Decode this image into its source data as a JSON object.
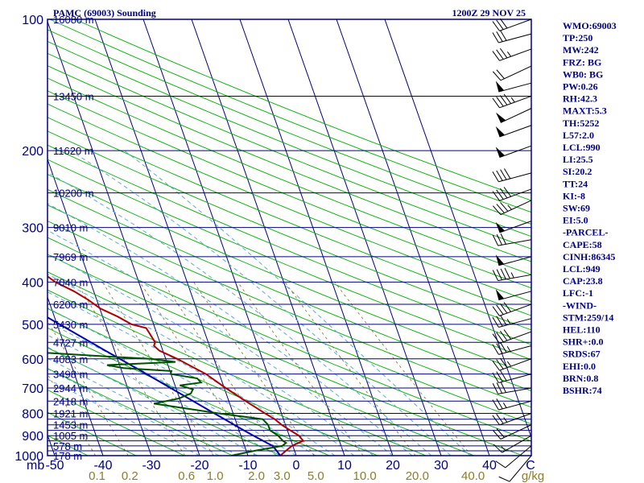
{
  "header": {
    "station": "PAMC (69003) Sounding",
    "time": "1200Z 29 NOV 25"
  },
  "indices": [
    "WMO:69003",
    "TP:250",
    "MW:242",
    "FRZ: BG",
    "WB0: BG",
    "PW:0.26",
    "RH:42.3",
    "MAXT:5.3",
    "TH:5252",
    "L57:2.0",
    "LCL:990",
    "LI:25.5",
    "SI:20.2",
    "TT:24",
    "KI:-8",
    "SW:69",
    "EI:5.0",
    "-PARCEL-",
    "CAPE:58",
    "CINH:86345",
    "LCL:949",
    "CAP:23.8",
    "LFC:-1",
    "-WIND-",
    "STM:259/14",
    "HEL:110",
    "SHR+:0.0",
    "SRDS:67",
    "EHI:0.0",
    "BRN:0.8",
    "BSHR:74"
  ],
  "chart_data": {
    "type": "skew-t",
    "pressure_levels": [
      {
        "p": 100,
        "label": "100"
      },
      {
        "p": 200,
        "label": "200"
      },
      {
        "p": 300,
        "label": "300"
      },
      {
        "p": 400,
        "label": "400"
      },
      {
        "p": 500,
        "label": "500"
      },
      {
        "p": 600,
        "label": "600"
      },
      {
        "p": 700,
        "label": "700"
      },
      {
        "p": 800,
        "label": "800"
      },
      {
        "p": 900,
        "label": "900"
      },
      {
        "p": 1000,
        "label": "1000"
      }
    ],
    "heights": [
      {
        "p": 100,
        "label": "16080 m"
      },
      {
        "p": 150,
        "label": "13450 m"
      },
      {
        "p": 200,
        "label": "11620 m"
      },
      {
        "p": 250,
        "label": "10200 m"
      },
      {
        "p": 300,
        "label": "9010 m"
      },
      {
        "p": 350,
        "label": "7969 m"
      },
      {
        "p": 400,
        "label": "7040 m"
      },
      {
        "p": 450,
        "label": "6200 m"
      },
      {
        "p": 500,
        "label": "5430 m"
      },
      {
        "p": 550,
        "label": "4727 m"
      },
      {
        "p": 600,
        "label": "4083 m"
      },
      {
        "p": 650,
        "label": "3498 m"
      },
      {
        "p": 700,
        "label": "2944 m"
      },
      {
        "p": 750,
        "label": "2418 m"
      },
      {
        "p": 800,
        "label": "1921 m"
      },
      {
        "p": 850,
        "label": "1453 m"
      },
      {
        "p": 900,
        "label": "1005 m"
      },
      {
        "p": 950,
        "label": "578 m"
      },
      {
        "p": 1000,
        "label": "178 m"
      }
    ],
    "extra_isobars": [
      825,
      875,
      925,
      975
    ],
    "unit_label": "mb",
    "mixing_unit": "g/kg",
    "temp_ticks": [
      {
        "t": -50,
        "label": "-50"
      },
      {
        "t": -40,
        "label": "-40"
      },
      {
        "t": -30,
        "label": "-30"
      },
      {
        "t": -20,
        "label": "-20"
      },
      {
        "t": -10,
        "label": "-10"
      },
      {
        "t": 0,
        "label": "0"
      },
      {
        "t": 10,
        "label": "10"
      },
      {
        "t": 20,
        "label": "20"
      },
      {
        "t": 30,
        "label": "30"
      },
      {
        "t": 40,
        "label": "40"
      },
      {
        "t": 50,
        "label": "C"
      }
    ],
    "mixing_ratios": [
      {
        "w": 0.1,
        "label": "0.1"
      },
      {
        "w": 0.2,
        "label": "0.2"
      },
      {
        "w": 0.6,
        "label": "0.6"
      },
      {
        "w": 1.0,
        "label": "1.0"
      },
      {
        "w": 2.0,
        "label": "2.0"
      },
      {
        "w": 3.0,
        "label": "3.0"
      },
      {
        "w": 5.0,
        "label": "5.0"
      },
      {
        "w": 10.0,
        "label": "10.0"
      },
      {
        "w": 20.0,
        "label": "20.0"
      },
      {
        "w": 40.0,
        "label": "40.0"
      }
    ],
    "temperature": [
      [
        1000,
        -3.3
      ],
      [
        975,
        -1.8
      ],
      [
        950,
        -0.2
      ],
      [
        925,
        2.5
      ],
      [
        900,
        2.0
      ],
      [
        875,
        0.6
      ],
      [
        850,
        -0.8
      ],
      [
        825,
        -1.8
      ],
      [
        800,
        -3.4
      ],
      [
        750,
        -6.5
      ],
      [
        700,
        -9.7
      ],
      [
        650,
        -12.8
      ],
      [
        600,
        -17.6
      ],
      [
        575,
        -20.7
      ],
      [
        560,
        -21.5
      ],
      [
        550,
        -21.0
      ],
      [
        510,
        -21.8
      ],
      [
        500,
        -24.6
      ],
      [
        480,
        -26.9
      ],
      [
        460,
        -29.9
      ],
      [
        440,
        -31.7
      ],
      [
        420,
        -34.1
      ],
      [
        400,
        -37.3
      ],
      [
        375,
        -39.9
      ],
      [
        350,
        -43.3
      ],
      [
        320,
        -46.9
      ],
      [
        300,
        -49.9
      ],
      [
        275,
        -53.5
      ],
      [
        250,
        -58.8
      ],
      [
        230,
        -55.1
      ],
      [
        200,
        -49.4
      ],
      [
        175,
        -44.6
      ],
      [
        150,
        -40.0
      ],
      [
        125,
        -35.0
      ],
      [
        100,
        -29.3
      ]
    ],
    "dewpoint": [
      [
        1000,
        -13.4
      ],
      [
        975,
        -8.3
      ],
      [
        950,
        -2.2
      ],
      [
        935,
        -1.2
      ],
      [
        925,
        -1.7
      ],
      [
        900,
        -2.3
      ],
      [
        875,
        -3.6
      ],
      [
        850,
        -3.6
      ],
      [
        825,
        -4.3
      ],
      [
        800,
        -13.0
      ],
      [
        760,
        -25.7
      ],
      [
        740,
        -20.2
      ],
      [
        720,
        -17.3
      ],
      [
        705,
        -16.6
      ],
      [
        690,
        -19.0
      ],
      [
        680,
        -14.4
      ],
      [
        665,
        -14.9
      ],
      [
        650,
        -20.1
      ],
      [
        640,
        -19.7
      ],
      [
        630,
        -29.4
      ],
      [
        620,
        -32.6
      ],
      [
        610,
        -18.2
      ],
      [
        600,
        -23.2
      ],
      [
        590,
        -34.9
      ],
      [
        580,
        -45.5
      ],
      [
        565,
        -52.8
      ],
      [
        530,
        -49.2
      ],
      [
        500,
        -48.1
      ],
      [
        480,
        -47.0
      ],
      [
        460,
        -48.2
      ],
      [
        440,
        -42.4
      ],
      [
        420,
        -45.2
      ],
      [
        400,
        -46.6
      ],
      [
        380,
        -48.0
      ],
      [
        360,
        -48.7
      ],
      [
        345,
        -51.0
      ],
      [
        335,
        -52.7
      ],
      [
        330,
        -52.0
      ],
      [
        300,
        -56.1
      ],
      [
        270,
        -62.3
      ],
      [
        250,
        -66.3
      ],
      [
        225,
        -76.7
      ],
      [
        200,
        -84.2
      ],
      [
        175,
        -85.5
      ],
      [
        150,
        -86.7
      ],
      [
        125,
        -88.6
      ],
      [
        100,
        -90.5
      ]
    ],
    "parcel": [
      [
        1000,
        -3.3
      ],
      [
        975,
        -3.7
      ],
      [
        950,
        -4.2
      ],
      [
        925,
        -5.8
      ],
      [
        900,
        -7.4
      ],
      [
        875,
        -9.0
      ],
      [
        850,
        -10.6
      ],
      [
        825,
        -12.2
      ],
      [
        800,
        -13.9
      ],
      [
        750,
        -17.4
      ],
      [
        700,
        -21.1
      ],
      [
        650,
        -25.1
      ],
      [
        600,
        -29.5
      ],
      [
        550,
        -34.3
      ],
      [
        500,
        -39.5
      ],
      [
        450,
        -45.2
      ],
      [
        400,
        -51.6
      ],
      [
        350,
        -58.8
      ],
      [
        300,
        -67.0
      ],
      [
        250,
        -76.5
      ],
      [
        200,
        -87.7
      ],
      [
        150,
        -101.2
      ],
      [
        120,
        -111.0
      ],
      [
        100,
        -119.0
      ]
    ],
    "winds": [
      {
        "p": 100,
        "dir": 250,
        "spd": 30
      },
      {
        "p": 108,
        "dir": 255,
        "spd": 30
      },
      {
        "p": 117,
        "dir": 250,
        "spd": 35
      },
      {
        "p": 128,
        "dir": 245,
        "spd": 20
      },
      {
        "p": 140,
        "dir": 255,
        "spd": 50
      },
      {
        "p": 150,
        "dir": 250,
        "spd": 45
      },
      {
        "p": 160,
        "dir": 245,
        "spd": 50
      },
      {
        "p": 175,
        "dir": 250,
        "spd": 50
      },
      {
        "p": 195,
        "dir": 250,
        "spd": 50
      },
      {
        "p": 225,
        "dir": 255,
        "spd": 40
      },
      {
        "p": 245,
        "dir": 250,
        "spd": 40
      },
      {
        "p": 260,
        "dir": 245,
        "spd": 35
      },
      {
        "p": 290,
        "dir": 250,
        "spd": 50
      },
      {
        "p": 320,
        "dir": 260,
        "spd": 30
      },
      {
        "p": 350,
        "dir": 255,
        "spd": 50
      },
      {
        "p": 385,
        "dir": 260,
        "spd": 45
      },
      {
        "p": 420,
        "dir": 255,
        "spd": 50
      },
      {
        "p": 450,
        "dir": 250,
        "spd": 40
      },
      {
        "p": 485,
        "dir": 255,
        "spd": 35
      },
      {
        "p": 520,
        "dir": 250,
        "spd": 40
      },
      {
        "p": 560,
        "dir": 255,
        "spd": 35
      },
      {
        "p": 600,
        "dir": 250,
        "spd": 35
      },
      {
        "p": 650,
        "dir": 255,
        "spd": 30
      },
      {
        "p": 700,
        "dir": 260,
        "spd": 30
      },
      {
        "p": 750,
        "dir": 255,
        "spd": 25
      },
      {
        "p": 800,
        "dir": 250,
        "spd": 25
      },
      {
        "p": 850,
        "dir": 245,
        "spd": 20
      },
      {
        "p": 900,
        "dir": 240,
        "spd": 15
      },
      {
        "p": 950,
        "dir": 230,
        "spd": 10
      },
      {
        "p": 1000,
        "dir": 220,
        "spd": 10
      }
    ],
    "colors": {
      "frame": "#000080",
      "isobar": "#000080",
      "isotherm": "#000080",
      "dry_adiabat": "#00b000",
      "moist_adiabat": "#5aaad8",
      "mixing_ratio": "#7a6a2a",
      "temperature": "#b00000",
      "dewpoint": "#005000",
      "parcel": "#0000b0",
      "wind": "#000000"
    }
  }
}
